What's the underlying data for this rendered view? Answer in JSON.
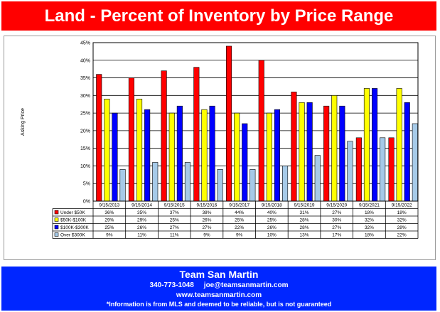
{
  "title": "Land - Percent of Inventory by Price Range",
  "footer": {
    "name": "Team San Martin",
    "phone": "340-773-1048",
    "email": "joe@teamsanmartin.com",
    "website": "www.teamsanmartin.com",
    "disclaimer": "*Information is from MLS and deemed to be reliable, but is not guaranteed"
  },
  "chart_data": {
    "type": "bar",
    "title": "Land - Percent of Inventory by Price Range",
    "ylabel": "Asking Price",
    "xlabel": "",
    "ylim": [
      0,
      45
    ],
    "y_ticks": [
      "0%",
      "5%",
      "10%",
      "15%",
      "20%",
      "25%",
      "30%",
      "35%",
      "40%",
      "45%"
    ],
    "grid": true,
    "legend": "data-table",
    "categories": [
      "9/15/2013",
      "9/15/2014",
      "9/15/2015",
      "9/15/2016",
      "9/15/2017",
      "9/15/2018",
      "9/15/2019",
      "9/15/2020",
      "9/15/2021",
      "9/15/2022"
    ],
    "series": [
      {
        "name": "Under $50K",
        "color": "#ff0000",
        "values": [
          36,
          35,
          37,
          38,
          44,
          40,
          31,
          27,
          18,
          18
        ],
        "labels": [
          "36%",
          "35%",
          "37%",
          "38%",
          "44%",
          "40%",
          "31%",
          "27%",
          "18%",
          "18%"
        ]
      },
      {
        "name": "$50K-$100K",
        "color": "#ffff00",
        "values": [
          29,
          29,
          25,
          26,
          25,
          25,
          28,
          30,
          32,
          32
        ],
        "labels": [
          "29%",
          "29%",
          "25%",
          "26%",
          "25%",
          "25%",
          "28%",
          "30%",
          "32%",
          "32%"
        ]
      },
      {
        "name": "$100K-$300K",
        "color": "#0000ff",
        "values": [
          25,
          26,
          27,
          27,
          22,
          26,
          28,
          27,
          32,
          28
        ],
        "labels": [
          "25%",
          "26%",
          "27%",
          "27%",
          "22%",
          "26%",
          "28%",
          "27%",
          "32%",
          "28%"
        ]
      },
      {
        "name": "Over $300K",
        "color": "#a6cae8",
        "values": [
          9,
          11,
          11,
          9,
          9,
          10,
          13,
          17,
          18,
          22
        ],
        "labels": [
          "9%",
          "11%",
          "11%",
          "9%",
          "9%",
          "10%",
          "13%",
          "17%",
          "18%",
          "22%"
        ]
      }
    ]
  }
}
